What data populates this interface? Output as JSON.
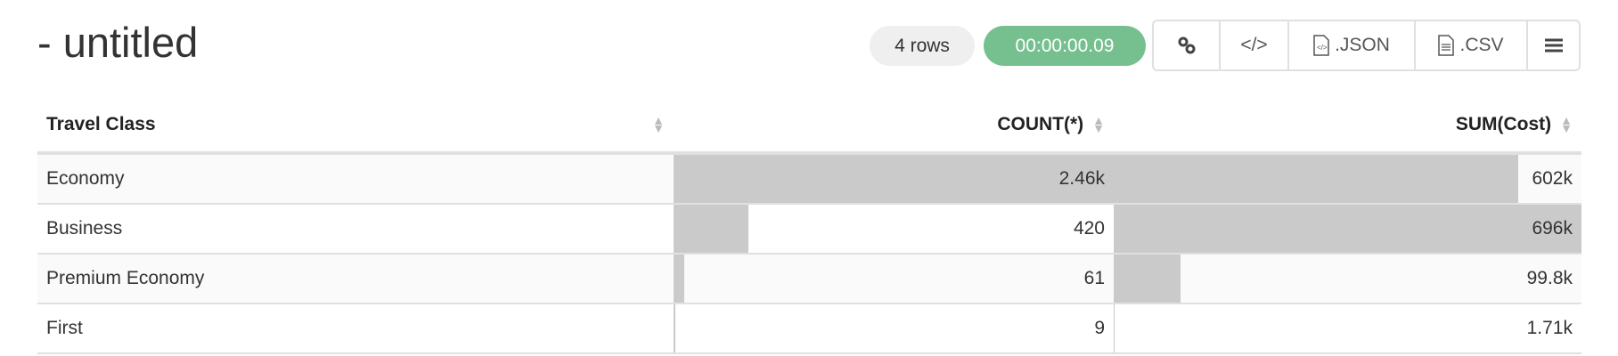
{
  "title": "- untitled",
  "row_count": "4 rows",
  "elapsed": "00:00:00.09",
  "toolbar": {
    "link": "link-icon",
    "embed": "code-icon",
    "json": ".JSON",
    "csv": ".CSV",
    "menu": "menu-icon"
  },
  "columns": [
    "Travel Class",
    "COUNT(*)",
    "SUM(Cost)"
  ],
  "rows": [
    {
      "cls": "Economy",
      "count": "2.46k",
      "count_v": 2460,
      "sum": "602k",
      "sum_v": 602000
    },
    {
      "cls": "Business",
      "count": "420",
      "count_v": 420,
      "sum": "696k",
      "sum_v": 696000
    },
    {
      "cls": "Premium Economy",
      "count": "61",
      "count_v": 61,
      "sum": "99.8k",
      "sum_v": 99800
    },
    {
      "cls": "First",
      "count": "9",
      "count_v": 9,
      "sum": "1.71k",
      "sum_v": 1710
    }
  ],
  "colors": {
    "bar": "#cacaca",
    "timer": "#76c08f"
  }
}
